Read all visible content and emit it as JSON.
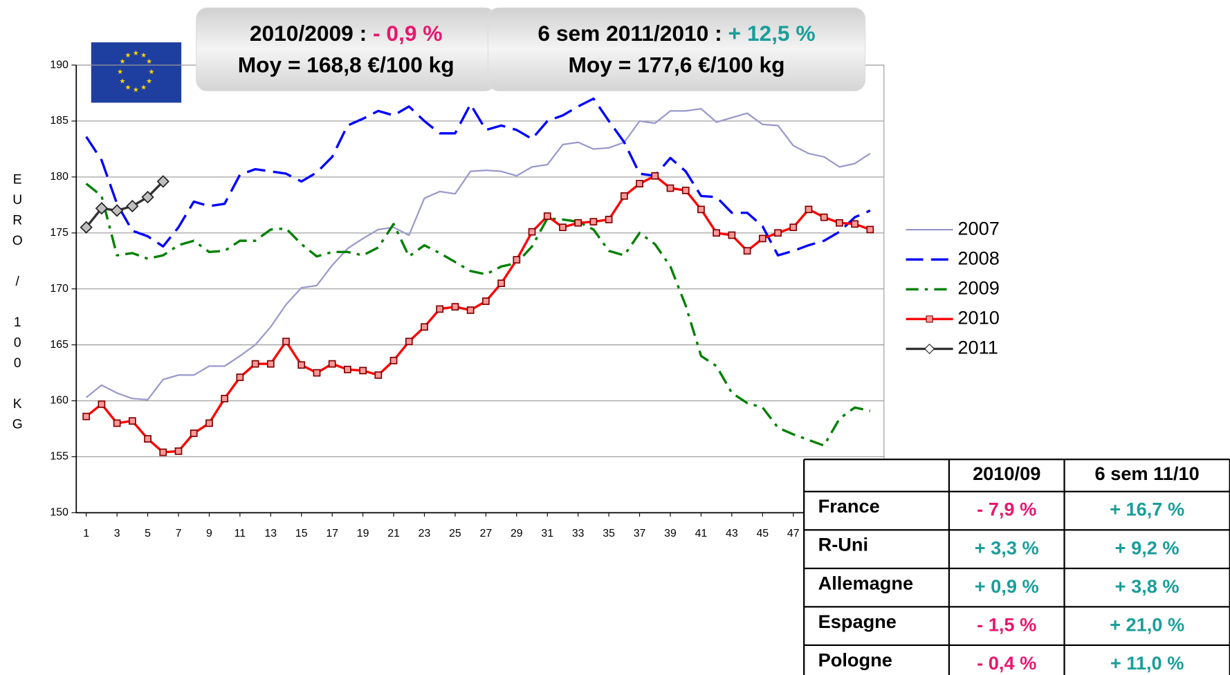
{
  "chart_data": {
    "type": "line",
    "y_label": "EURO / 100 KG",
    "x": [
      1,
      2,
      3,
      4,
      5,
      6,
      7,
      8,
      9,
      10,
      11,
      12,
      13,
      14,
      15,
      16,
      17,
      18,
      19,
      20,
      21,
      22,
      23,
      24,
      25,
      26,
      27,
      28,
      29,
      30,
      31,
      32,
      33,
      34,
      35,
      36,
      37,
      38,
      39,
      40,
      41,
      42,
      43,
      44,
      45,
      46,
      47,
      48,
      49,
      50,
      51,
      52
    ],
    "xlim": [
      0.35,
      52.9
    ],
    "xticks": [
      1,
      3,
      5,
      7,
      9,
      11,
      13,
      15,
      17,
      19,
      21,
      23,
      25,
      27,
      29,
      31,
      33,
      35,
      37,
      39,
      41,
      43,
      45,
      47
    ],
    "ylim": [
      150,
      190
    ],
    "yticks": [
      150,
      155,
      160,
      165,
      170,
      175,
      180,
      185,
      190
    ],
    "grid": true,
    "legend": "right",
    "series": [
      {
        "name": "2007",
        "color": "#9999cc",
        "style": "solid",
        "values": [
          160.3,
          161.4,
          160.7,
          160.2,
          160.1,
          161.9,
          162.3,
          162.3,
          163.1,
          163.1,
          164.0,
          165.0,
          166.6,
          168.6,
          170.1,
          170.3,
          172.1,
          173.6,
          174.5,
          175.3,
          175.5,
          174.8,
          178.1,
          178.7,
          178.5,
          180.5,
          180.6,
          180.5,
          180.1,
          180.9,
          181.1,
          182.9,
          183.1,
          182.5,
          182.6,
          183.1,
          185.0,
          184.8,
          185.9,
          185.9,
          186.1,
          184.9,
          185.3,
          185.7,
          184.7,
          184.6,
          182.8,
          182.1,
          181.8,
          180.9,
          181.2,
          182.1
        ]
      },
      {
        "name": "2008",
        "color": "#0000ff",
        "style": "dash",
        "values": [
          183.6,
          181.5,
          177.6,
          175.2,
          174.7,
          173.8,
          175.5,
          177.8,
          177.4,
          177.6,
          180.2,
          180.7,
          180.5,
          180.3,
          179.6,
          180.4,
          181.8,
          184.6,
          185.2,
          185.9,
          185.5,
          186.3,
          185.0,
          183.9,
          183.9,
          186.5,
          184.2,
          184.6,
          184.2,
          183.4,
          185.0,
          185.5,
          186.3,
          187.0,
          185.0,
          183.1,
          180.3,
          180.1,
          181.7,
          180.5,
          178.3,
          178.2,
          176.8,
          176.8,
          175.6,
          173.0,
          173.4,
          173.9,
          174.3,
          175.1,
          176.4,
          177.0
        ]
      },
      {
        "name": "2009",
        "color": "#008000",
        "style": "dashdot",
        "values": [
          179.4,
          178.3,
          173.0,
          173.2,
          172.7,
          173.0,
          173.9,
          174.3,
          173.3,
          173.4,
          174.3,
          174.3,
          175.3,
          175.4,
          174.0,
          172.9,
          173.3,
          173.3,
          173.0,
          173.7,
          175.8,
          172.9,
          173.9,
          173.2,
          172.4,
          171.6,
          171.3,
          172.0,
          172.3,
          173.8,
          176.3,
          176.2,
          176.0,
          175.3,
          173.4,
          173.0,
          175.0,
          174.0,
          172.0,
          168.5,
          164.0,
          163.1,
          160.7,
          159.8,
          159.4,
          157.6,
          157.0,
          156.5,
          156.0,
          158.4,
          159.4,
          159.1
        ]
      },
      {
        "name": "2010",
        "color": "#ff0000",
        "style": "solid",
        "marker": "square",
        "values": [
          158.6,
          159.7,
          158.0,
          158.2,
          156.6,
          155.4,
          155.5,
          157.1,
          158.0,
          160.2,
          162.1,
          163.3,
          163.3,
          165.3,
          163.2,
          162.5,
          163.3,
          162.8,
          162.7,
          162.3,
          163.6,
          165.3,
          166.6,
          168.2,
          168.4,
          168.1,
          168.9,
          170.5,
          172.6,
          175.1,
          176.5,
          175.5,
          175.9,
          176.0,
          176.2,
          178.3,
          179.4,
          180.1,
          179.0,
          178.8,
          177.1,
          175.0,
          174.8,
          173.4,
          174.5,
          175.0,
          175.5,
          177.1,
          176.4,
          175.9,
          175.8,
          175.3
        ]
      },
      {
        "name": "2011",
        "color": "#333333",
        "style": "solid",
        "marker": "diamond",
        "values": [
          175.5,
          177.2,
          177.0,
          177.4,
          178.2,
          179.6,
          null,
          null,
          null,
          null,
          null,
          null,
          null,
          null,
          null,
          null,
          null,
          null,
          null,
          null,
          null,
          null,
          null,
          null,
          null,
          null,
          null,
          null,
          null,
          null,
          null,
          null,
          null,
          null,
          null,
          null,
          null,
          null,
          null,
          null,
          null,
          null,
          null,
          null,
          null,
          null,
          null,
          null,
          null,
          null,
          null,
          null
        ]
      }
    ],
    "annotations": [
      {
        "label": "2010/2009 :",
        "value": "- 0,9 %",
        "note": "Moy = 168,8 €/100 kg"
      },
      {
        "label": "6 sem 2011/2010 :",
        "value": "+ 12,5 %",
        "note": "Moy = 177,6 €/100 kg"
      }
    ],
    "table": {
      "columns": [
        "2010/09",
        "6 sem 11/10"
      ],
      "rows": [
        {
          "name": "France",
          "values": [
            "- 7,9 %",
            "+ 16,7 %"
          ]
        },
        {
          "name": "R-Uni",
          "values": [
            "+ 3,3 %",
            "+ 9,2 %"
          ]
        },
        {
          "name": "Allemagne",
          "values": [
            "+ 0,9 %",
            "+ 3,8 %"
          ]
        },
        {
          "name": "Espagne",
          "values": [
            "- 1,5 %",
            "+ 21,0 %"
          ]
        },
        {
          "name": "Pologne",
          "values": [
            "- 0,4 %",
            "+ 11,0 %"
          ]
        }
      ],
      "negative_color": "#e8176e",
      "positive_color": "#1a9e9a"
    }
  }
}
